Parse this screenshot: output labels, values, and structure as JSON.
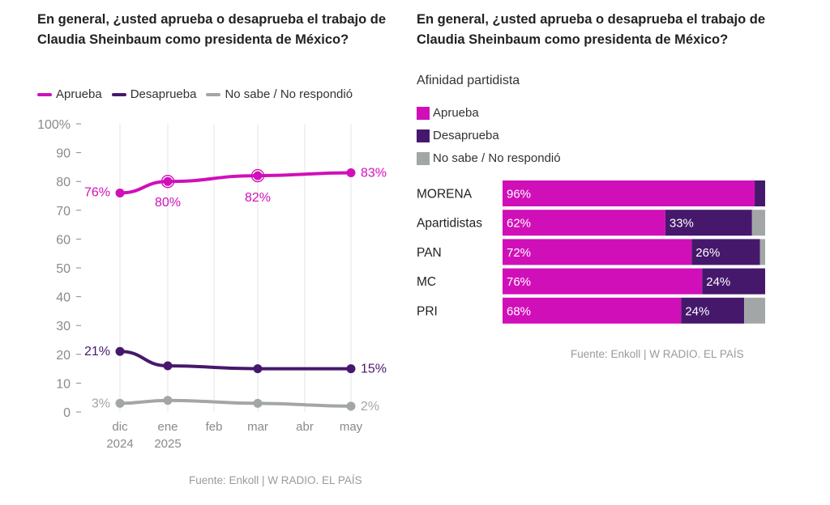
{
  "chart_data": [
    {
      "type": "line",
      "title": "En general, ¿usted aprueba o desaprueba el trabajo de Claudia Sheinbaum como presidenta de México?",
      "x": [
        {
          "label": [
            "dic",
            "2024"
          ]
        },
        {
          "label": [
            "ene",
            "2025"
          ]
        },
        {
          "label": [
            "feb"
          ]
        },
        {
          "label": [
            "mar"
          ]
        },
        {
          "label": [
            "abr"
          ]
        },
        {
          "label": [
            "may"
          ]
        }
      ],
      "y_ticks": [
        "100%",
        "90",
        "80",
        "70",
        "60",
        "50",
        "40",
        "30",
        "20",
        "10",
        "0"
      ],
      "ylim": [
        0,
        100
      ],
      "grid": "vertical",
      "legend_position": "top",
      "series": [
        {
          "name": "Aprueba",
          "color": "#d10fb9",
          "points": [
            {
              "x": 0,
              "y": 76,
              "label": "76%"
            },
            {
              "x": 1,
              "y": 80,
              "label": "80%"
            },
            {
              "x": 3,
              "y": 82,
              "label": "82%"
            },
            {
              "x": 5,
              "y": 83,
              "label": "83%"
            }
          ]
        },
        {
          "name": "Desaprueba",
          "color": "#46186c",
          "points": [
            {
              "x": 0,
              "y": 21,
              "label": "21%"
            },
            {
              "x": 1,
              "y": 16,
              "label": ""
            },
            {
              "x": 3,
              "y": 15,
              "label": ""
            },
            {
              "x": 5,
              "y": 15,
              "label": "15%"
            }
          ]
        },
        {
          "name": "No sabe / No respondió",
          "color": "#a3a6a6",
          "points": [
            {
              "x": 0,
              "y": 3,
              "label": "3%"
            },
            {
              "x": 1,
              "y": 4,
              "label": ""
            },
            {
              "x": 3,
              "y": 3,
              "label": ""
            },
            {
              "x": 5,
              "y": 2,
              "label": "2%"
            }
          ]
        }
      ],
      "source": "Fuente: Enkoll | W RADIO. EL PAÍS"
    },
    {
      "type": "bar",
      "orientation": "horizontal",
      "stacked": true,
      "title": "En general, ¿usted aprueba o desaprueba el trabajo de Claudia Sheinbaum como presidenta de México?",
      "subtitle": "Afinidad partidista",
      "categories": [
        "MORENA",
        "Apartidistas",
        "PAN",
        "MC",
        "PRI"
      ],
      "series": [
        {
          "name": "Aprueba",
          "color": "#d10fb9",
          "values": [
            96,
            62,
            72,
            76,
            68
          ],
          "labels": [
            "96%",
            "62%",
            "72%",
            "76%",
            "68%"
          ]
        },
        {
          "name": "Desaprueba",
          "color": "#46186c",
          "values": [
            4,
            33,
            26,
            24,
            24
          ],
          "labels": [
            "",
            "33%",
            "26%",
            "24%",
            "24%"
          ]
        },
        {
          "name": "No sabe / No respondió",
          "color": "#a3a6a6",
          "values": [
            0,
            5,
            2,
            0,
            8
          ],
          "labels": [
            "",
            "",
            "",
            "",
            ""
          ]
        }
      ],
      "legend_position": "top-left",
      "source": "Fuente: Enkoll | W RADIO. EL PAÍS"
    }
  ]
}
